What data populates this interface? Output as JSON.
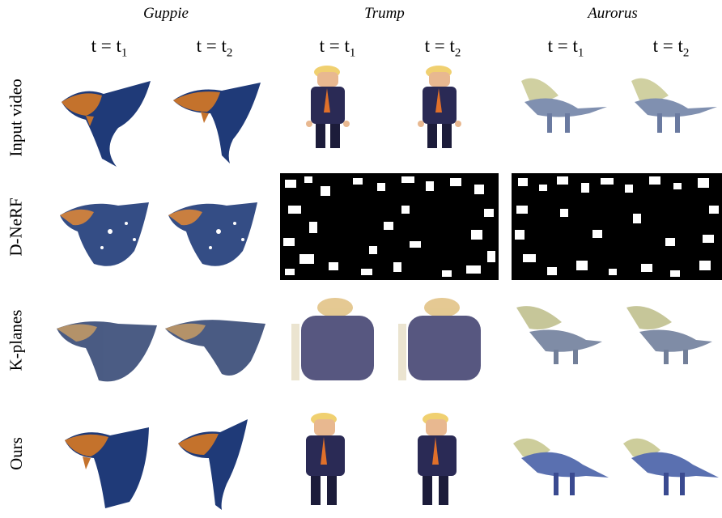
{
  "columns": [
    {
      "subject": "Guppie",
      "times": [
        "t = t",
        "t = t"
      ],
      "subs": [
        "1",
        "2"
      ]
    },
    {
      "subject": "Trump",
      "times": [
        "t = t",
        "t = t"
      ],
      "subs": [
        "1",
        "2"
      ]
    },
    {
      "subject": "Aurorus",
      "times": [
        "t = t",
        "t = t"
      ],
      "subs": [
        "1",
        "2"
      ]
    }
  ],
  "rows": [
    "Input video",
    "D-NeRF",
    "K-planes",
    "Ours"
  ],
  "colors": {
    "fish_blue": "#1f3a78",
    "fish_orange": "#c4722c",
    "suit": "#2a2a55",
    "tie": "#e0702a",
    "hair": "#f0d070",
    "dino": "#8090b0"
  }
}
